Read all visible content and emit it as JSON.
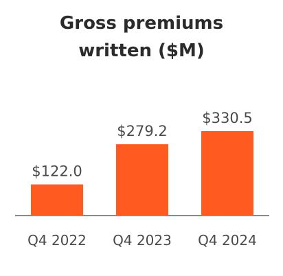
{
  "chart_data": {
    "type": "bar",
    "title_lines": [
      "Gross premiums",
      "written ($M)"
    ],
    "categories": [
      "Q4 2022",
      "Q4 2023",
      "Q4 2024"
    ],
    "values": [
      122.0,
      279.2,
      330.5
    ],
    "value_labels": [
      "$122.0",
      "$279.2",
      "$330.5"
    ],
    "bar_color": "#ff5a1f",
    "axis_color": "#8a8a8a",
    "grid": false,
    "legend": "none"
  }
}
